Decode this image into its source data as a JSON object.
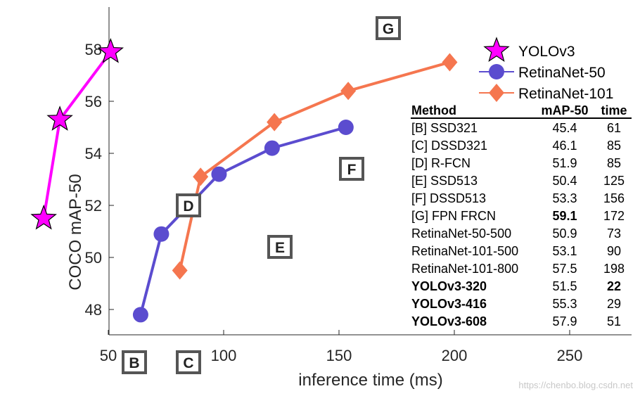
{
  "chart_data": {
    "type": "line",
    "xlabel": "inference time (ms)",
    "ylabel": "COCO mAP-50",
    "xlim": [
      50,
      280
    ],
    "ylim": [
      47,
      58.5
    ],
    "xticks": [
      50,
      100,
      150,
      200,
      250
    ],
    "yticks": [
      48,
      50,
      52,
      54,
      56,
      58
    ],
    "grid": false,
    "legend_position": "top-right",
    "series": [
      {
        "name": "YOLOv3",
        "color": "#ff00ff",
        "marker": "star",
        "x": [
          22,
          29,
          51
        ],
        "y": [
          51.5,
          55.3,
          57.9
        ]
      },
      {
        "name": "RetinaNet-50",
        "color": "#5b4ccf",
        "marker": "circle",
        "x": [
          64,
          73,
          98,
          121,
          153
        ],
        "y": [
          47.8,
          50.9,
          53.2,
          54.2,
          55.0
        ]
      },
      {
        "name": "RetinaNet-101",
        "color": "#f5764f",
        "marker": "diamond",
        "x": [
          81,
          90,
          122,
          154,
          198
        ],
        "y": [
          49.5,
          53.1,
          55.2,
          56.4,
          57.5
        ]
      }
    ],
    "annotations": [
      {
        "label": "B",
        "x": 61,
        "y": 46.0
      },
      {
        "label": "C",
        "x": 85,
        "y": 46.0
      },
      {
        "label": "D",
        "x": 85,
        "y": 52.0
      },
      {
        "label": "E",
        "x": 125,
        "y": 50.4
      },
      {
        "label": "F",
        "x": 156,
        "y": 53.3
      },
      {
        "label": "G",
        "x": 172,
        "y": 59.1
      }
    ],
    "table": {
      "headers": [
        "Method",
        "mAP-50",
        "time"
      ],
      "rows": [
        {
          "method": "[B] SSD321",
          "map": "45.4",
          "time": "61"
        },
        {
          "method": "[C] DSSD321",
          "map": "46.1",
          "time": "85"
        },
        {
          "method": "[D] R-FCN",
          "map": "51.9",
          "time": "85"
        },
        {
          "method": "[E] SSD513",
          "map": "50.4",
          "time": "125"
        },
        {
          "method": "[F] DSSD513",
          "map": "53.3",
          "time": "156"
        },
        {
          "method": "[G] FPN FRCN",
          "map": "59.1",
          "time": "172",
          "bold_map": true
        },
        {
          "method": "RetinaNet-50-500",
          "map": "50.9",
          "time": "73"
        },
        {
          "method": "RetinaNet-101-500",
          "map": "53.1",
          "time": "90"
        },
        {
          "method": "RetinaNet-101-800",
          "map": "57.5",
          "time": "198"
        },
        {
          "method": "YOLOv3-320",
          "map": "51.5",
          "time": "22",
          "bold_method": true,
          "bold_time": true
        },
        {
          "method": "YOLOv3-416",
          "map": "55.3",
          "time": "29",
          "bold_method": true
        },
        {
          "method": "YOLOv3-608",
          "map": "57.9",
          "time": "51",
          "bold_method": true
        }
      ]
    }
  },
  "watermark": "https://chenbo.blog.csdn.net"
}
